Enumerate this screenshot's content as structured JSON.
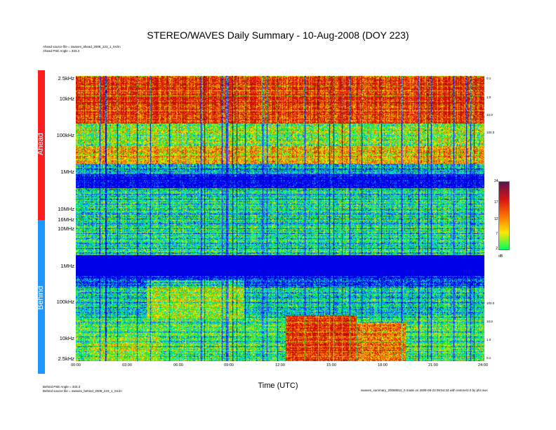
{
  "title": "STEREO/WAVES Daily Summary - 10-Aug-2008 (DOY 223)",
  "header_notes": [
    "Ahead source file = swaves_ahead_2008_223_1_04.lin",
    "Ahead PSE Angle = 333.3"
  ],
  "footer_notes_left": [
    "Behind PSE Angle = 333.3",
    "Behind source file = swaves_behind_2008_223_1_04.lin"
  ],
  "footer_note_right": "swaves_summary_20080810_0 made on 2008-08-23 09:54:34 with restore/2.0 by phc.swc",
  "xlabel": "Time (UTC)",
  "colorbar": {
    "unit": "dB",
    "ticks": [
      "24",
      "17",
      "12",
      "7",
      "2"
    ]
  },
  "panels": {
    "ahead": {
      "label": "Ahead",
      "color": "#ff1e1e"
    },
    "behind": {
      "label": "Behind",
      "color": "#1e96ff"
    }
  },
  "chart_data": {
    "type": "heatmap",
    "title": "STEREO/WAVES Daily Summary - 10-Aug-2008 (DOY 223)",
    "xlabel": "Time (UTC)",
    "x_ticks": [
      "00:00",
      "03:00",
      "06:00",
      "09:00",
      "12:00",
      "15:00",
      "18:00",
      "21:00",
      "24:00"
    ],
    "xlim": [
      0,
      24
    ],
    "ahead_y_ticks": [
      "2.5kHz",
      "10kHz",
      "100kHz",
      "1MHz",
      "10MHz",
      "16MHz"
    ],
    "behind_y_ticks": [
      "10MHz",
      "1MHz",
      "100kHz",
      "10kHz",
      "2.5kHz"
    ],
    "ahead_right_ticks": [
      "0.1",
      "1.0",
      "10.0",
      "100.0"
    ],
    "behind_right_ticks": [
      "100.0",
      "10.0",
      "1.0",
      "0.1"
    ],
    "colorbar_range_db": [
      2,
      24
    ],
    "colorbar_ticks": [
      24,
      17,
      12,
      7,
      2
    ],
    "colorbar_unit": "dB",
    "colorscale": [
      "#00ff5a",
      "#ffe600",
      "#ff7000",
      "#d21414",
      "#5a1450"
    ],
    "bands": [
      {
        "panel": "ahead",
        "label": "2.5kHz-100kHz",
        "intensity_db": 18
      },
      {
        "panel": "ahead",
        "label": "100kHz-1MHz",
        "intensity_db": 11
      },
      {
        "panel": "ahead",
        "label": "1MHz-16MHz",
        "intensity_db": 4
      },
      {
        "panel": "behind",
        "label": "10MHz-1MHz",
        "intensity_db": 3
      },
      {
        "panel": "behind",
        "label": "1MHz-100kHz",
        "intensity_db": 1
      },
      {
        "panel": "behind",
        "label": "100kHz-2.5kHz",
        "intensity_db": 8
      },
      {
        "panel": "behind",
        "label": "burst 12:00-19:00 low freq",
        "intensity_db": 19
      }
    ]
  }
}
